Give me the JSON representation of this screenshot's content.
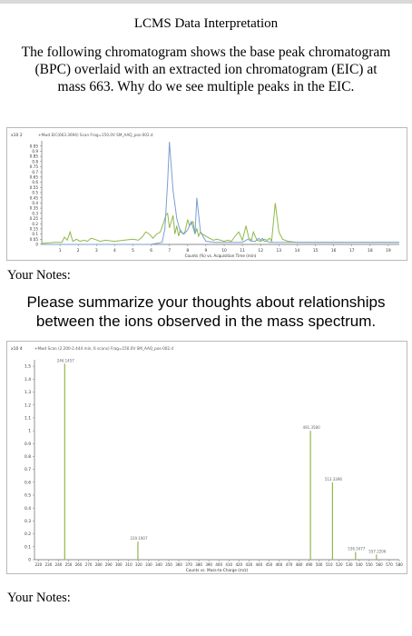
{
  "page": {
    "title": "LCMS Data Interpretation",
    "question1": "The following chromatogram shows the base peak chromatogram (BPC) overlaid with an extracted ion chromatogram (EIC) at mass 663. Why do we see multiple peaks in the EIC.",
    "notes_label_1": "Your Notes:",
    "question2": "Please summarize your thoughts about relationships between the ions observed in the mass spectrum.",
    "notes_label_2": "Your Notes:"
  },
  "colors": {
    "bpc": "#8fb84b",
    "eic": "#7b9fd0",
    "ms": "#8fb84b",
    "frame": "#b9b9b9"
  },
  "chart_data": [
    {
      "type": "line",
      "header": "x10 2",
      "legend": "+Mwd EIC(663.3694) Scan Frag=150.0V SM_AAQ_pos-002.d",
      "xlabel": "Counts (%) vs. Acquisition Time (min)",
      "ylabel": "",
      "xlim": [
        0,
        19.6
      ],
      "ylim": [
        0,
        1.0
      ],
      "x_ticks": [
        "1",
        "2",
        "3",
        "4",
        "5",
        "6",
        "7",
        "8",
        "9",
        "10",
        "11",
        "12",
        "13",
        "14",
        "15",
        "16",
        "17",
        "18",
        "19"
      ],
      "y_ticks": [
        "0.95",
        "0.9",
        "0.85",
        "0.8",
        "0.75",
        "0.7",
        "0.65",
        "0.6",
        "0.55",
        "0.5",
        "0.45",
        "0.4",
        "0.35",
        "0.3",
        "0.25",
        "0.2",
        "0.15",
        "0.1",
        "0.05",
        "0"
      ],
      "series": [
        {
          "name": "BPC",
          "x": [
            0,
            0.7,
            1.1,
            1.25,
            1.4,
            1.55,
            1.7,
            1.9,
            2.1,
            2.3,
            2.5,
            2.7,
            2.9,
            3.2,
            3.5,
            4.0,
            4.5,
            5.0,
            5.3,
            5.5,
            5.7,
            5.9,
            6.1,
            6.3,
            6.5,
            6.7,
            6.8,
            6.9,
            7.0,
            7.1,
            7.2,
            7.3,
            7.4,
            7.5,
            7.6,
            7.75,
            7.85,
            8.0,
            8.1,
            8.2,
            8.3,
            8.4,
            8.5,
            8.6,
            8.7,
            8.8,
            9.0,
            9.2,
            9.4,
            9.6,
            9.8,
            10.0,
            10.2,
            10.4,
            10.6,
            10.8,
            11.0,
            11.2,
            11.35,
            11.5,
            11.6,
            11.8,
            12.0,
            12.2,
            12.35,
            12.5,
            12.6,
            12.8,
            13.0,
            13.2,
            13.5,
            14,
            15,
            16,
            17,
            18,
            19.6
          ],
          "y": [
            0.01,
            0.02,
            0.02,
            0.07,
            0.04,
            0.12,
            0.03,
            0.05,
            0.03,
            0.04,
            0.03,
            0.06,
            0.05,
            0.03,
            0.04,
            0.03,
            0.04,
            0.05,
            0.04,
            0.07,
            0.12,
            0.1,
            0.06,
            0.1,
            0.12,
            0.22,
            0.28,
            0.3,
            0.16,
            0.22,
            0.28,
            0.1,
            0.18,
            0.08,
            0.14,
            0.1,
            0.12,
            0.24,
            0.18,
            0.2,
            0.22,
            0.1,
            0.15,
            0.08,
            0.12,
            0.1,
            0.08,
            0.06,
            0.04,
            0.05,
            0.04,
            0.03,
            0.04,
            0.03,
            0.08,
            0.12,
            0.04,
            0.18,
            0.06,
            0.04,
            0.12,
            0.04,
            0.03,
            0.05,
            0.04,
            0.06,
            0.03,
            0.4,
            0.12,
            0.05,
            0.03,
            0.02,
            0.02,
            0.02,
            0.02,
            0.02,
            0.02
          ]
        },
        {
          "name": "EIC 663",
          "x": [
            0,
            6.0,
            6.6,
            6.75,
            6.9,
            7.0,
            7.2,
            7.4,
            7.6,
            7.8,
            8.0,
            8.2,
            8.4,
            8.5,
            8.7,
            9.0,
            9.5,
            10.0,
            10.5,
            11.0,
            11.3,
            11.5,
            11.7,
            11.9,
            12.0,
            12.1,
            12.2,
            12.35,
            12.5,
            13.0,
            13.5,
            14,
            15,
            16,
            17,
            18,
            19.6
          ],
          "y": [
            0,
            0,
            0.02,
            0.15,
            0.6,
            0.99,
            0.52,
            0.25,
            0.12,
            0.1,
            0.14,
            0.22,
            0.1,
            0.45,
            0.12,
            0.03,
            0.02,
            0.02,
            0.02,
            0.02,
            0.05,
            0.03,
            0.03,
            0.06,
            0.04,
            0.06,
            0.03,
            0.03,
            0.02,
            0.02,
            0.02,
            0.02,
            0.02,
            0.02,
            0.02,
            0.02,
            0.02
          ]
        }
      ]
    },
    {
      "type": "bar",
      "header": "x10 4",
      "legend": "+Mwd Scan (2.200-2.444 min, 6 scans) Frag=150.0V SM_AAQ_pos-002.d",
      "xlabel": "Counts vs. Mass-to-Charge (m/z)",
      "ylabel": "",
      "xlim": [
        216,
        580
      ],
      "ylim": [
        0,
        1.55
      ],
      "x_ticks": [
        "220",
        "230",
        "240",
        "250",
        "260",
        "270",
        "280",
        "290",
        "300",
        "310",
        "320",
        "330",
        "340",
        "350",
        "360",
        "370",
        "380",
        "390",
        "400",
        "410",
        "420",
        "430",
        "440",
        "450",
        "460",
        "470",
        "480",
        "490",
        "500",
        "510",
        "520",
        "530",
        "540",
        "550",
        "560",
        "570",
        "580"
      ],
      "y_ticks": [
        "1.5",
        "1.4",
        "1.3",
        "1.2",
        "1.1",
        "1",
        "0.9",
        "0.8",
        "0.7",
        "0.6",
        "0.5",
        "0.4",
        "0.3",
        "0.2",
        "0.1",
        "0"
      ],
      "peaks": [
        {
          "mz": 246.1457,
          "value": 1.52,
          "label": "246.1457"
        },
        {
          "mz": 319.1907,
          "value": 0.14,
          "label": "319.1907"
        },
        {
          "mz": 491.358,
          "value": 1.0,
          "label": "491.3580"
        },
        {
          "mz": 513.3396,
          "value": 0.6,
          "label": "513.3396"
        },
        {
          "mz": 536.3477,
          "value": 0.06,
          "label": "536.3477"
        },
        {
          "mz": 557.2206,
          "value": 0.04,
          "label": "557.2206"
        }
      ]
    }
  ]
}
